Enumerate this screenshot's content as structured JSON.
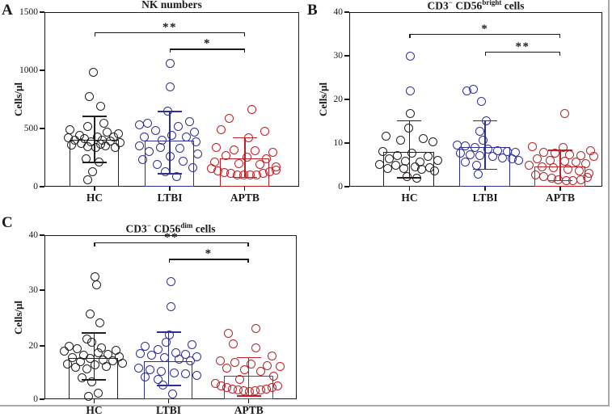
{
  "figure": {
    "background": "#ffffff",
    "border_color": "#a9a9a9",
    "y_axis_unit": "Cells/μl"
  },
  "chart_data": [
    {
      "type": "bar",
      "panel_label": "A",
      "title": "NK numbers",
      "title_parts": [
        {
          "text": "NK numbers",
          "sup": false
        }
      ],
      "ylabel": "Cells/μl",
      "ylim": [
        0,
        1500
      ],
      "yticks": [
        {
          "v": 0,
          "label": "0"
        },
        {
          "v": 500,
          "label": "500"
        },
        {
          "v": 1000,
          "label": "1000"
        },
        {
          "v": 1500,
          "label": "1500"
        }
      ],
      "categories": [
        "HC",
        "LTBI",
        "APTB"
      ],
      "colors": [
        "#231f20",
        "#2e3192",
        "#bf2026"
      ],
      "grid": false,
      "legend": null,
      "bar_means": [
        400,
        394,
        243
      ],
      "error_bars": [
        [
          208,
          605
        ],
        [
          110,
          645
        ],
        [
          80,
          420
        ]
      ],
      "significance": [
        {
          "pair": [
            0,
            2
          ],
          "label": "**",
          "v": 1325
        },
        {
          "pair": [
            1,
            2
          ],
          "label": "*",
          "v": 1185
        }
      ],
      "points": [
        [
          [
            985,
            -2
          ],
          [
            775,
            -7
          ],
          [
            690,
            7
          ],
          [
            545,
            11
          ],
          [
            520,
            -9
          ],
          [
            490,
            -31
          ],
          [
            470,
            15
          ],
          [
            455,
            29
          ],
          [
            440,
            -19
          ],
          [
            430,
            3
          ],
          [
            425,
            23
          ],
          [
            418,
            -33
          ],
          [
            410,
            -13
          ],
          [
            402,
            9
          ],
          [
            396,
            -25
          ],
          [
            390,
            19
          ],
          [
            385,
            -5
          ],
          [
            380,
            31
          ],
          [
            374,
            -17
          ],
          [
            368,
            7
          ],
          [
            360,
            -29
          ],
          [
            353,
            13
          ],
          [
            347,
            -9
          ],
          [
            340,
            25
          ],
          [
            335,
            1
          ],
          [
            240,
            -11
          ],
          [
            212,
            5
          ],
          [
            128,
            -3
          ],
          [
            62,
            -9
          ]
        ],
        [
          [
            1060,
            1
          ],
          [
            860,
            1
          ],
          [
            648,
            -2
          ],
          [
            560,
            25
          ],
          [
            545,
            -27
          ],
          [
            528,
            -37
          ],
          [
            518,
            11
          ],
          [
            480,
            -17
          ],
          [
            468,
            31
          ],
          [
            440,
            3
          ],
          [
            430,
            -31
          ],
          [
            424,
            21
          ],
          [
            400,
            -9
          ],
          [
            388,
            33
          ],
          [
            350,
            -37
          ],
          [
            340,
            -11
          ],
          [
            330,
            13
          ],
          [
            300,
            -25
          ],
          [
            280,
            35
          ],
          [
            258,
            1
          ],
          [
            230,
            -33
          ],
          [
            220,
            17
          ],
          [
            190,
            -15
          ],
          [
            160,
            29
          ],
          [
            128,
            -5
          ],
          [
            88,
            9
          ]
        ],
        [
          [
            660,
            9
          ],
          [
            588,
            -19
          ],
          [
            490,
            -29
          ],
          [
            474,
            25
          ],
          [
            418,
            5
          ],
          [
            340,
            -35
          ],
          [
            318,
            -13
          ],
          [
            308,
            13
          ],
          [
            298,
            35
          ],
          [
            268,
            -23
          ],
          [
            252,
            3
          ],
          [
            238,
            27
          ],
          [
            212,
            -37
          ],
          [
            200,
            -7
          ],
          [
            192,
            19
          ],
          [
            168,
            39
          ],
          [
            158,
            -41
          ],
          [
            138,
            -33
          ],
          [
            124,
            -25
          ],
          [
            112,
            -17
          ],
          [
            103,
            -9
          ],
          [
            98,
            -1
          ],
          [
            98,
            7
          ],
          [
            104,
            15
          ],
          [
            114,
            23
          ],
          [
            126,
            31
          ],
          [
            142,
            39
          ]
        ]
      ]
    },
    {
      "type": "bar",
      "panel_label": "B",
      "title": "CD3− CD56bright cells",
      "title_parts": [
        {
          "text": "CD3",
          "sup": false
        },
        {
          "text": "−",
          "sup": true
        },
        {
          "text": " CD56",
          "sup": false
        },
        {
          "text": "bright",
          "sup": true
        },
        {
          "text": " cells",
          "sup": false
        }
      ],
      "ylabel": "Cells/μl",
      "ylim": [
        0,
        40
      ],
      "yticks": [
        {
          "v": 0,
          "label": "0"
        },
        {
          "v": 10,
          "label": "10"
        },
        {
          "v": 20,
          "label": "20"
        },
        {
          "v": 30,
          "label": "30"
        },
        {
          "v": 40,
          "label": "40"
        }
      ],
      "categories": [
        "HC",
        "LTBI",
        "APTB"
      ],
      "colors": [
        "#231f20",
        "#2e3192",
        "#bf2026"
      ],
      "grid": false,
      "legend": null,
      "bar_means": [
        7.9,
        9.1,
        4.7
      ],
      "error_bars": [
        [
          2.0,
          15.1
        ],
        [
          4.0,
          15.1
        ],
        [
          1.4,
          8.3
        ]
      ],
      "significance": [
        {
          "pair": [
            0,
            2
          ],
          "label": "*",
          "v": 35
        },
        {
          "pair": [
            1,
            2
          ],
          "label": "**",
          "v": 31
        }
      ],
      "points": [
        [
          [
            30,
            1,
            1
          ],
          [
            22,
            1,
            1
          ],
          [
            16.8,
            1
          ],
          [
            13.5,
            -1
          ],
          [
            11.5,
            -29
          ],
          [
            11,
            17
          ],
          [
            10.6,
            -11
          ],
          [
            10.3,
            29
          ],
          [
            8.1,
            -33
          ],
          [
            7.6,
            3
          ],
          [
            7.1,
            -15
          ],
          [
            6.9,
            23
          ],
          [
            6.3,
            -25
          ],
          [
            6.1,
            35
          ],
          [
            5.9,
            -5
          ],
          [
            5.6,
            13
          ],
          [
            5.1,
            -37
          ],
          [
            4.9,
            -17
          ],
          [
            4.6,
            7
          ],
          [
            4.4,
            25
          ],
          [
            4.2,
            -27
          ],
          [
            4.1,
            -7
          ],
          [
            3.9,
            15
          ],
          [
            3.6,
            31
          ],
          [
            2.3,
            -3
          ],
          [
            1.9,
            9
          ]
        ],
        [
          [
            22.3,
            -15
          ],
          [
            21.9,
            -23
          ],
          [
            19.6,
            -5
          ],
          [
            15.1,
            1
          ],
          [
            12.6,
            -7
          ],
          [
            10.6,
            -3
          ],
          [
            9.6,
            -35
          ],
          [
            9.3,
            -25
          ],
          [
            8.9,
            -13
          ],
          [
            8.6,
            3
          ],
          [
            8.3,
            15
          ],
          [
            8.1,
            27
          ],
          [
            7.9,
            37
          ],
          [
            7.6,
            -31
          ],
          [
            7.3,
            -19
          ],
          [
            7.1,
            -7
          ],
          [
            6.9,
            9
          ],
          [
            6.6,
            21
          ],
          [
            6.3,
            33
          ],
          [
            6.1,
            41
          ],
          [
            5.6,
            -25
          ],
          [
            4.9,
            -11
          ],
          [
            2.9,
            -9
          ]
        ],
        [
          [
            16.8,
            5
          ],
          [
            9.1,
            -35
          ],
          [
            8.9,
            3
          ],
          [
            8.3,
            37
          ],
          [
            7.9,
            -21
          ],
          [
            7.6,
            -7
          ],
          [
            7.3,
            11
          ],
          [
            7.1,
            25
          ],
          [
            6.9,
            41
          ],
          [
            6.3,
            -29
          ],
          [
            6.1,
            -13
          ],
          [
            5.9,
            5
          ],
          [
            5.6,
            19
          ],
          [
            5.3,
            31
          ],
          [
            4.9,
            -39
          ],
          [
            4.6,
            -23
          ],
          [
            4.3,
            -9
          ],
          [
            3.9,
            9
          ],
          [
            3.6,
            23
          ],
          [
            3.1,
            35
          ],
          [
            2.6,
            -31
          ],
          [
            2.3,
            -21
          ],
          [
            1.9,
            -11
          ],
          [
            1.6,
            -3
          ],
          [
            1.4,
            7
          ],
          [
            1.3,
            15
          ],
          [
            1.6,
            25
          ],
          [
            2.1,
            33
          ]
        ]
      ]
    },
    {
      "type": "bar",
      "panel_label": "C",
      "title": "CD3− CD56dim cells",
      "title_parts": [
        {
          "text": "CD3",
          "sup": false
        },
        {
          "text": "−",
          "sup": true
        },
        {
          "text": " CD56",
          "sup": false
        },
        {
          "text": "dim",
          "sup": true
        },
        {
          "text": " cells",
          "sup": false
        }
      ],
      "ylabel": "Cells/μl",
      "ylim": [
        0,
        40
      ],
      "yticks": [
        {
          "v": 0,
          "label": "0"
        },
        {
          "v": 20,
          "label": "20"
        },
        {
          "v": 30,
          "label": "30"
        },
        {
          "v": 40,
          "label": "40"
        }
      ],
      "categories": [
        "HC",
        "LTBI",
        "APTB"
      ],
      "colors": [
        "#231f20",
        "#2e3192",
        "#bf2026"
      ],
      "grid": false,
      "legend": null,
      "bar_means": [
        15.5,
        14.2,
        8.8
      ],
      "error_bars": [
        [
          7.3,
          22.3
        ],
        [
          5.2,
          22.5
        ],
        [
          1.2,
          15.6
        ]
      ],
      "significance": [
        {
          "pair": [
            0,
            2
          ],
          "label": "**",
          "v": 38.7
        },
        {
          "pair": [
            1,
            2
          ],
          "label": "*",
          "v": 35.7
        }
      ],
      "points": [
        [
          [
            32.5,
            1
          ],
          [
            31,
            3
          ],
          [
            25.7,
            -5
          ],
          [
            24.2,
            7
          ],
          [
            21.2,
            -9
          ],
          [
            20.6,
            -3
          ],
          [
            20,
            -31
          ],
          [
            19.4,
            9
          ],
          [
            18.9,
            -21
          ],
          [
            18.4,
            27
          ],
          [
            17.9,
            -37
          ],
          [
            17.4,
            5
          ],
          [
            16.9,
            17
          ],
          [
            16.4,
            -13
          ],
          [
            16,
            31
          ],
          [
            15.6,
            -27
          ],
          [
            15.2,
            -5
          ],
          [
            14.8,
            11
          ],
          [
            14.4,
            23
          ],
          [
            14,
            -17
          ],
          [
            13.6,
            35
          ],
          [
            13.2,
            -33
          ],
          [
            12.8,
            1
          ],
          [
            12.4,
            15
          ],
          [
            12,
            -23
          ],
          [
            11.4,
            -9
          ],
          [
            8,
            -15
          ],
          [
            6.5,
            -3
          ],
          [
            2.2,
            5
          ],
          [
            1,
            -7
          ]
        ],
        [
          [
            31.6,
            3
          ],
          [
            27,
            3
          ],
          [
            22,
            1
          ],
          [
            20.7,
            -3
          ],
          [
            20.2,
            29
          ],
          [
            19.9,
            -29
          ],
          [
            18.5,
            -13
          ],
          [
            17.5,
            9
          ],
          [
            17.2,
            -35
          ],
          [
            16.9,
            21
          ],
          [
            16.4,
            -21
          ],
          [
            16,
            35
          ],
          [
            15.5,
            -5
          ],
          [
            15,
            13
          ],
          [
            14.4,
            27
          ],
          [
            11.8,
            -37
          ],
          [
            11.2,
            -23
          ],
          [
            10.6,
            -9
          ],
          [
            10,
            7
          ],
          [
            9.4,
            21
          ],
          [
            8.8,
            35
          ],
          [
            8.2,
            -29
          ],
          [
            7.3,
            -13
          ],
          [
            5.2,
            -7
          ],
          [
            2.1,
            5
          ]
        ],
        [
          [
            23.1,
            9
          ],
          [
            22.2,
            -25
          ],
          [
            20.4,
            -19
          ],
          [
            19.2,
            9
          ],
          [
            16.2,
            29
          ],
          [
            14.5,
            -35
          ],
          [
            13.8,
            -17
          ],
          [
            13.2,
            3
          ],
          [
            12.6,
            23
          ],
          [
            12.2,
            39
          ],
          [
            11.6,
            -27
          ],
          [
            11,
            -5
          ],
          [
            10.4,
            15
          ],
          [
            8.5,
            31
          ],
          [
            7.5,
            -11
          ],
          [
            5.8,
            -41
          ],
          [
            5,
            -34
          ],
          [
            4.4,
            -27
          ],
          [
            3.8,
            -20
          ],
          [
            3.4,
            -13
          ],
          [
            3.1,
            -6
          ],
          [
            3,
            1
          ],
          [
            3.1,
            8
          ],
          [
            3.4,
            15
          ],
          [
            3.8,
            22
          ],
          [
            4.4,
            29
          ],
          [
            5.1,
            36
          ]
        ]
      ]
    }
  ]
}
